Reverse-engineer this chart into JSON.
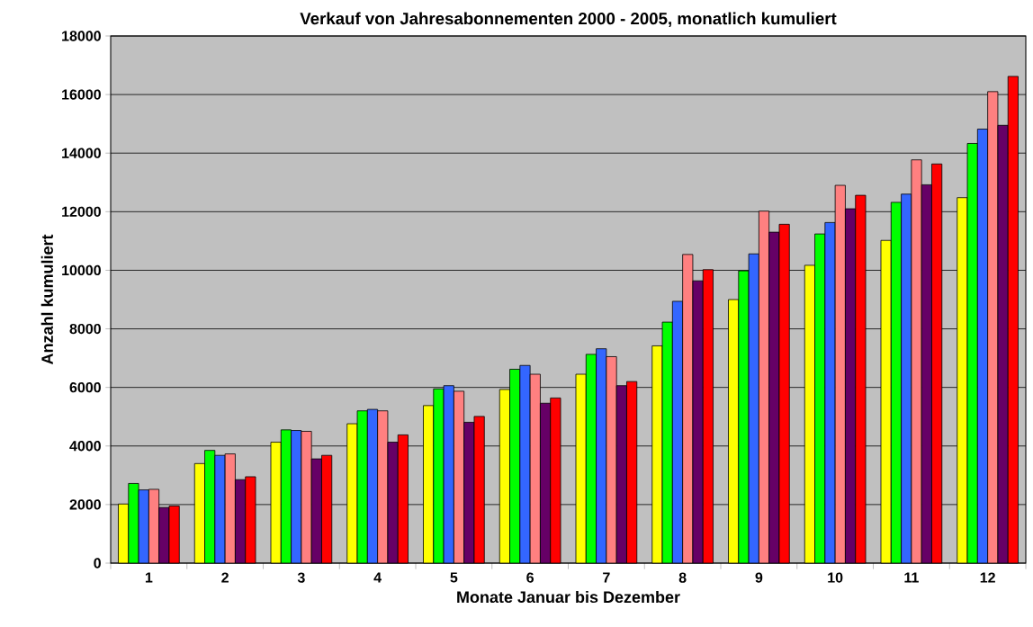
{
  "chart_data": {
    "type": "bar",
    "title": "Verkauf von Jahresabonnementen 2000 - 2005, monatlich kumuliert",
    "xlabel": "Monate Januar bis Dezember",
    "ylabel": "Anzahl kumuliert",
    "categories": [
      "1",
      "2",
      "3",
      "4",
      "5",
      "6",
      "7",
      "8",
      "9",
      "10",
      "11",
      "12"
    ],
    "series": [
      {
        "color": "#ffff00",
        "values": [
          2020,
          3400,
          4130,
          4760,
          5380,
          5930,
          6450,
          7420,
          9000,
          10170,
          11020,
          12480
        ]
      },
      {
        "color": "#00ff00",
        "values": [
          2720,
          3850,
          4550,
          5200,
          5950,
          6620,
          7130,
          8230,
          9980,
          11240,
          12320,
          14330
        ]
      },
      {
        "color": "#3366ff",
        "values": [
          2500,
          3680,
          4530,
          5250,
          6060,
          6750,
          7320,
          8940,
          10560,
          11630,
          12600,
          14820
        ]
      },
      {
        "color": "#ff8080",
        "values": [
          2520,
          3730,
          4500,
          5200,
          5870,
          6450,
          7050,
          10540,
          12020,
          12900,
          13770,
          16100
        ]
      },
      {
        "color": "#660066",
        "values": [
          1900,
          2850,
          3560,
          4130,
          4810,
          5460,
          6060,
          9640,
          11300,
          12100,
          12920,
          14950
        ]
      },
      {
        "color": "#ff0000",
        "values": [
          1950,
          2950,
          3680,
          4380,
          5010,
          5640,
          6200,
          10020,
          11570,
          12560,
          13630,
          16620
        ]
      }
    ],
    "ylim": [
      0,
      18000
    ],
    "yticks": [
      0,
      2000,
      4000,
      6000,
      8000,
      10000,
      12000,
      14000,
      16000,
      18000
    ],
    "grid": "y"
  }
}
